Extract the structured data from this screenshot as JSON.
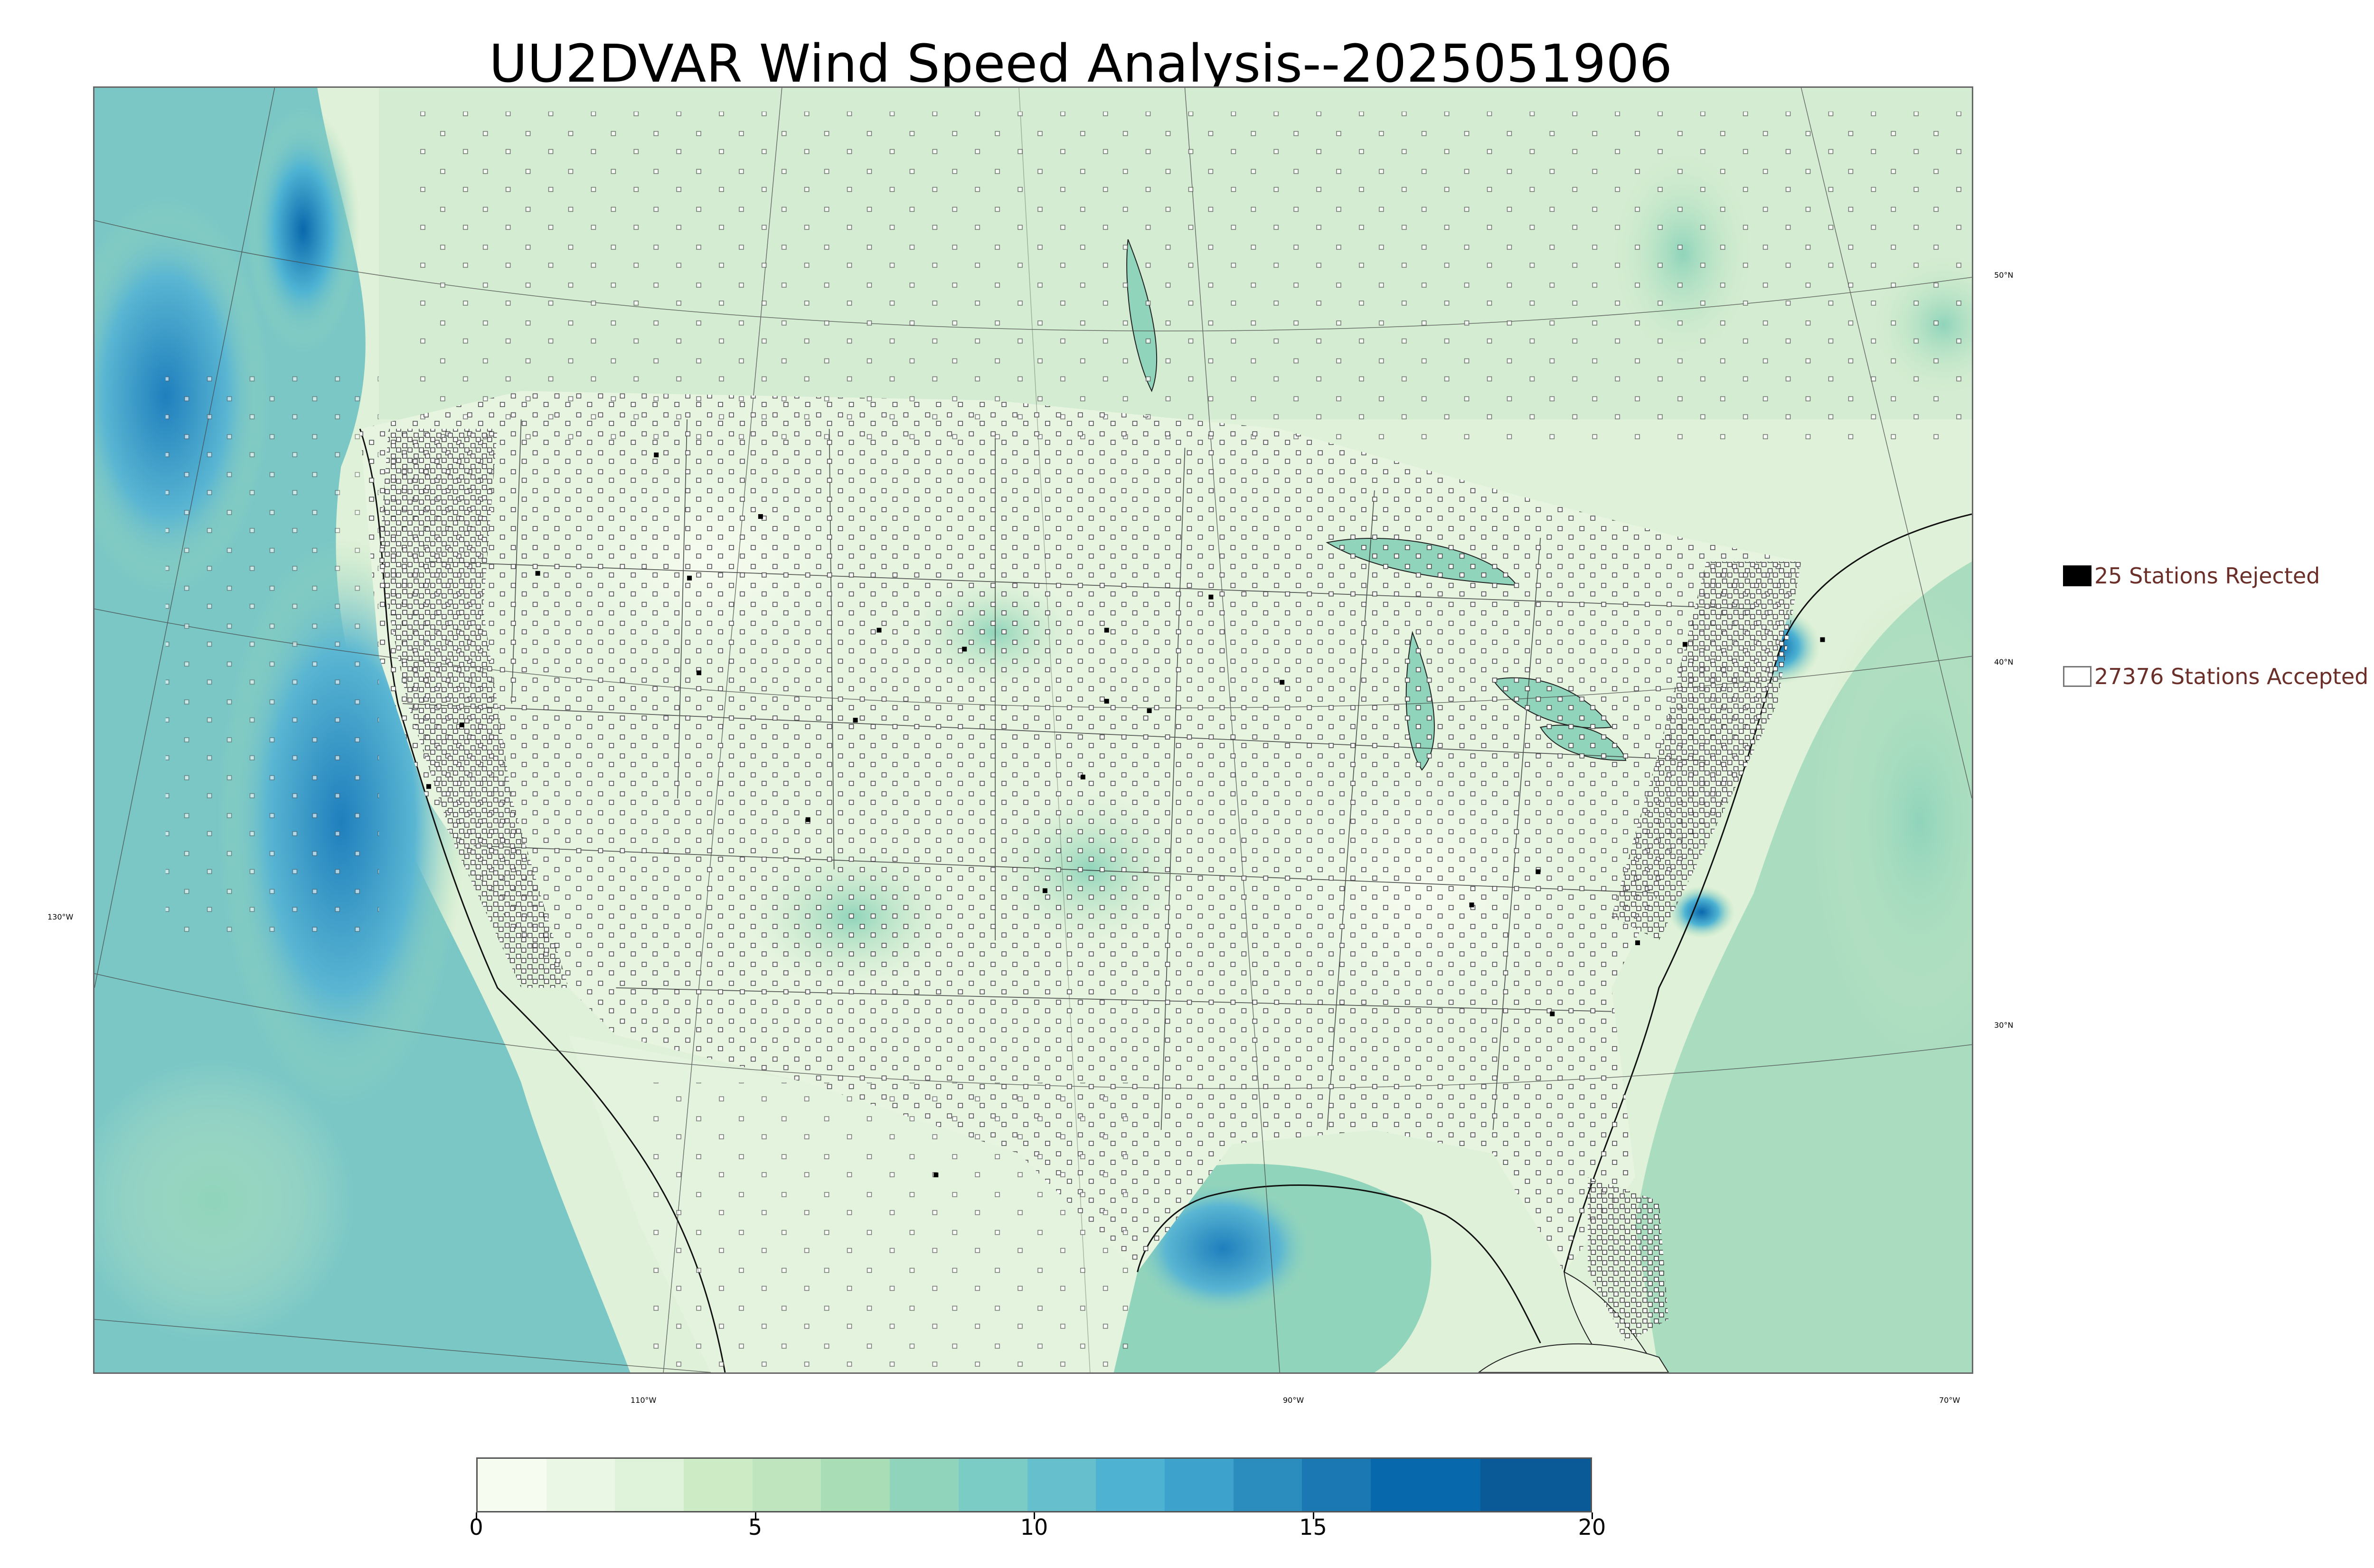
{
  "title": "UU2DVAR Wind Speed Analysis--2025051906",
  "legend": {
    "rejected": "25 Stations Rejected",
    "accepted": "27376 Stations Accepted"
  },
  "latitude_labels": [
    "50°N",
    "40°N",
    "30°N"
  ],
  "longitude_labels": [
    "130°W",
    "110°W",
    "90°W",
    "70°W"
  ],
  "colorbar": {
    "ticks": [
      "0",
      "5",
      "10",
      "15",
      "20"
    ],
    "colors": [
      "#f7fcf0",
      "#eaf7e4",
      "#dff3da",
      "#cdebc5",
      "#bfe5bf",
      "#a8ddb5",
      "#8fd4bb",
      "#7bccc4",
      "#66bfcc",
      "#4eb3d3",
      "#3ea3cc",
      "#2b8cbe",
      "#1c78b2",
      "#0868ac",
      "#0b5a98"
    ]
  },
  "colors": {
    "land": "#e8f5e3",
    "ocean_deep": "#2b8cbe",
    "ocean_mid": "#7bccc4",
    "title": "#000000",
    "legend_text": "#6b2f2a"
  }
}
